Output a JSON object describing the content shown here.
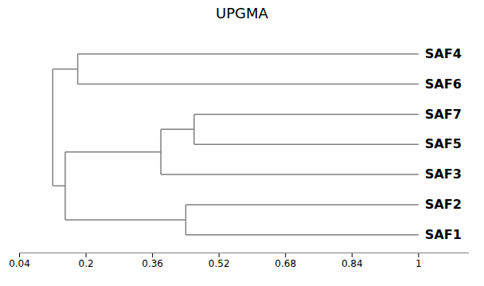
{
  "chart_data": {
    "type": "dendrogram",
    "title": "UPGMA",
    "tree": {
      "height": 0.12,
      "children": [
        {
          "height": 0.18,
          "children": [
            "SAF4",
            "SAF6"
          ]
        },
        {
          "height": 0.15,
          "children": [
            {
              "height": 0.38,
              "children": [
                {
                  "height": 0.46,
                  "children": [
                    "SAF7",
                    "SAF5"
                  ]
                },
                "SAF3"
              ]
            },
            {
              "height": 0.44,
              "children": [
                "SAF2",
                "SAF1"
              ]
            }
          ]
        }
      ]
    },
    "leaf_height": 1.0,
    "color": "#808080",
    "xlim": [
      0.04,
      1.12
    ],
    "xticks": [
      0.04,
      0.2,
      0.36,
      0.52,
      0.68,
      0.84,
      1
    ],
    "tick_labels": "x"
  }
}
